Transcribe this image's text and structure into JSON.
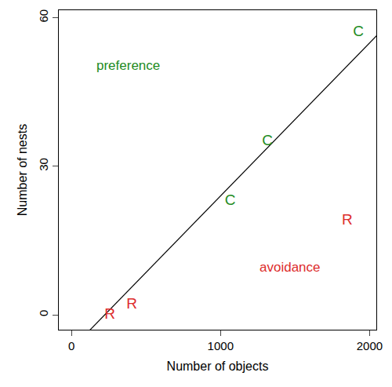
{
  "chart_data": {
    "type": "scatter",
    "xlabel": "Number of objects",
    "ylabel": "Number of nests",
    "xlim": [
      -85,
      2045
    ],
    "ylim": [
      -3,
      61.5
    ],
    "xticks": [
      0,
      1000,
      2000
    ],
    "yticks": [
      0,
      30,
      60
    ],
    "grid": false,
    "marker": "text",
    "series": [
      {
        "name": "C",
        "color": "#228b22",
        "x": [
          1065,
          1315,
          1925
        ],
        "values": [
          23,
          35,
          57
        ]
      },
      {
        "name": "R",
        "color": "#dd2c2c",
        "x": [
          258,
          405,
          1850
        ],
        "values": [
          0,
          2,
          19
        ]
      }
    ],
    "line": {
      "color": "#000000",
      "x": [
        100,
        2100
      ],
      "values": [
        -3.8,
        58.0
      ]
    },
    "annotations": [
      {
        "text": "preference",
        "x": 378,
        "y": 50.3,
        "color": "#228b22"
      },
      {
        "text": "avoidance",
        "x": 1466,
        "y": 9.6,
        "color": "#dd2c2c"
      }
    ]
  }
}
